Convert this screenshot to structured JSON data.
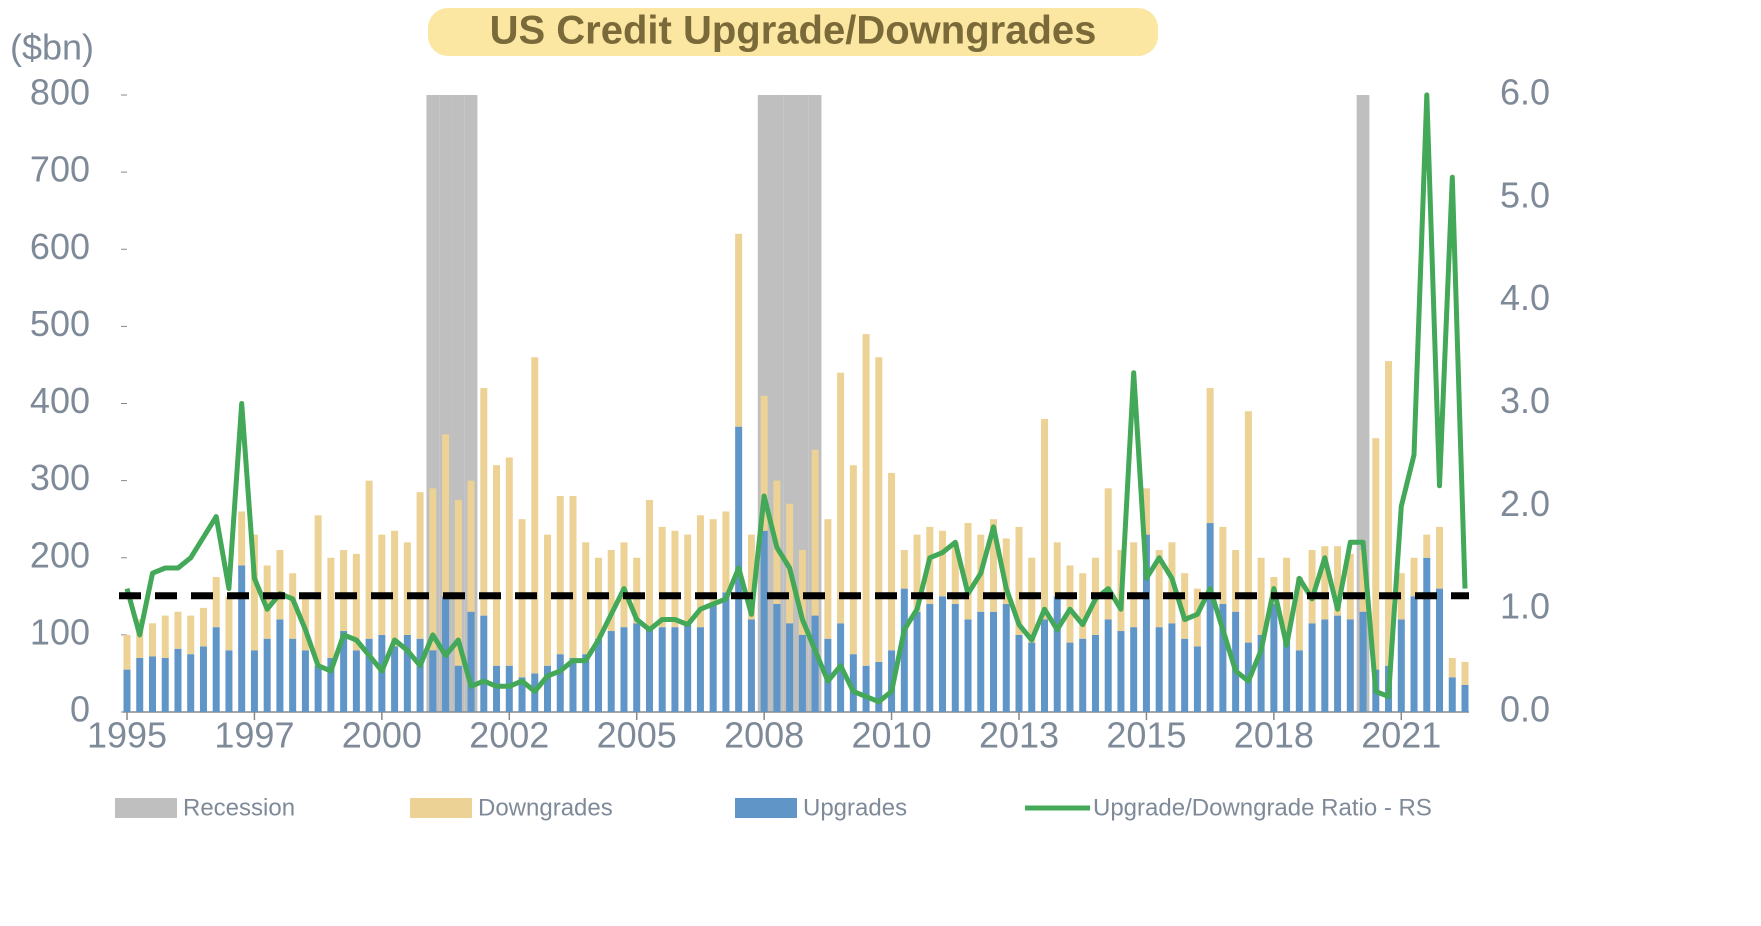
{
  "chart_data": {
    "type": "bar",
    "title": "US Credit Upgrade/Downgrades",
    "y_label": "($bn)",
    "categories": [
      "1995",
      null,
      null,
      null,
      null,
      null,
      null,
      null,
      null,
      null,
      "1997",
      null,
      null,
      null,
      null,
      null,
      null,
      null,
      null,
      null,
      "2000",
      null,
      null,
      null,
      null,
      null,
      null,
      null,
      null,
      null,
      "2002",
      null,
      null,
      null,
      null,
      null,
      null,
      null,
      null,
      null,
      "2005",
      null,
      null,
      null,
      null,
      null,
      null,
      null,
      null,
      null,
      "2008",
      null,
      null,
      null,
      null,
      null,
      null,
      null,
      null,
      null,
      "2010",
      null,
      null,
      null,
      null,
      null,
      null,
      null,
      null,
      null,
      "2013",
      null,
      null,
      null,
      null,
      null,
      null,
      null,
      null,
      null,
      "2015",
      null,
      null,
      null,
      null,
      null,
      null,
      null,
      null,
      null,
      "2018",
      null,
      null,
      null,
      null,
      null,
      null,
      null,
      null,
      null,
      "2021",
      null,
      null,
      null,
      null,
      null
    ],
    "stacked": true,
    "series": [
      {
        "name": "Upgrades",
        "color": "#5f95c7",
        "values": [
          55,
          70,
          72,
          70,
          82,
          75,
          85,
          110,
          80,
          190,
          80,
          95,
          120,
          95,
          80,
          60,
          70,
          105,
          80,
          95,
          100,
          85,
          100,
          95,
          80,
          150,
          60,
          130,
          125,
          60,
          60,
          45,
          50,
          60,
          75,
          70,
          75,
          95,
          105,
          110,
          115,
          110,
          110,
          110,
          115,
          110,
          140,
          155,
          370,
          120,
          235,
          140,
          115,
          100,
          125,
          95,
          115,
          75,
          60,
          65,
          80,
          160,
          130,
          140,
          150,
          140,
          120,
          130,
          130,
          140,
          100,
          90,
          120,
          150,
          90,
          95,
          100,
          120,
          105,
          110,
          230,
          110,
          115,
          95,
          85,
          245,
          140,
          130,
          90,
          100,
          140,
          100,
          80,
          115,
          120,
          125,
          120,
          130,
          55,
          60,
          120,
          150,
          200,
          160,
          45,
          35
        ]
      },
      {
        "name": "Downgrades",
        "color": "#ecd295",
        "values": [
          45,
          50,
          43,
          55,
          48,
          50,
          50,
          65,
          70,
          70,
          150,
          95,
          90,
          85,
          70,
          195,
          130,
          105,
          125,
          205,
          130,
          150,
          120,
          190,
          210,
          210,
          215,
          170,
          295,
          260,
          270,
          205,
          410,
          170,
          205,
          210,
          145,
          105,
          105,
          110,
          85,
          165,
          130,
          125,
          115,
          145,
          110,
          105,
          250,
          110,
          175,
          160,
          155,
          110,
          215,
          155,
          325,
          245,
          430,
          395,
          230,
          50,
          100,
          100,
          85,
          80,
          125,
          100,
          120,
          85,
          140,
          110,
          260,
          70,
          100,
          85,
          100,
          170,
          105,
          110,
          60,
          100,
          105,
          85,
          75,
          175,
          100,
          80,
          300,
          100,
          35,
          100,
          95,
          95,
          95,
          90,
          85,
          80,
          300,
          395,
          60,
          50,
          30,
          80,
          25,
          30
        ]
      },
      {
        "name": "Upgrade/Downgrade Ratio - RS",
        "type": "line",
        "axis": "y2",
        "color": "#43a857",
        "values": [
          1.2,
          0.75,
          1.35,
          1.4,
          1.4,
          1.5,
          1.7,
          1.9,
          1.2,
          3.0,
          1.3,
          1.0,
          1.15,
          1.1,
          0.8,
          0.45,
          0.4,
          0.75,
          0.7,
          0.55,
          0.4,
          0.7,
          0.6,
          0.45,
          0.75,
          0.55,
          0.7,
          0.25,
          0.3,
          0.25,
          0.25,
          0.3,
          0.2,
          0.35,
          0.4,
          0.5,
          0.5,
          0.7,
          0.95,
          1.2,
          0.9,
          0.8,
          0.9,
          0.9,
          0.85,
          1.0,
          1.05,
          1.1,
          1.4,
          0.95,
          2.1,
          1.6,
          1.4,
          0.9,
          0.6,
          0.3,
          0.45,
          0.2,
          0.15,
          0.1,
          0.2,
          0.8,
          1.0,
          1.5,
          1.55,
          1.65,
          1.15,
          1.35,
          1.8,
          1.2,
          0.85,
          0.7,
          1.0,
          0.8,
          1.0,
          0.85,
          1.1,
          1.2,
          1.0,
          3.3,
          1.3,
          1.5,
          1.3,
          0.9,
          0.95,
          1.2,
          0.8,
          0.4,
          0.3,
          0.6,
          1.2,
          0.65,
          1.3,
          1.1,
          1.5,
          1.0,
          1.65,
          1.65,
          0.2,
          0.15,
          2.0,
          2.5,
          6.0,
          2.2,
          5.2,
          1.2
        ]
      }
    ],
    "recession": {
      "name": "Recession",
      "color": "#bfbfbf",
      "values": [
        0,
        0,
        0,
        0,
        0,
        0,
        0,
        0,
        0,
        0,
        0,
        0,
        0,
        0,
        0,
        0,
        0,
        0,
        0,
        0,
        0,
        0,
        0,
        0,
        1,
        1,
        1,
        1,
        0,
        0,
        0,
        0,
        0,
        0,
        0,
        0,
        0,
        0,
        0,
        0,
        0,
        0,
        0,
        0,
        0,
        0,
        0,
        0,
        0,
        0,
        1,
        1,
        1,
        1,
        1,
        0,
        0,
        0,
        0,
        0,
        0,
        0,
        0,
        0,
        0,
        0,
        0,
        0,
        0,
        0,
        0,
        0,
        0,
        0,
        0,
        0,
        0,
        0,
        0,
        0,
        0,
        0,
        0,
        0,
        0,
        0,
        0,
        0,
        0,
        0,
        0,
        0,
        0,
        0,
        0,
        0,
        0,
        1,
        0,
        0,
        0,
        0,
        0,
        0,
        0,
        0
      ]
    },
    "threshold": 1.13,
    "ylim": [
      0,
      800
    ],
    "yticks": [
      0,
      100,
      200,
      300,
      400,
      500,
      600,
      700,
      800
    ],
    "y2lim": [
      0,
      6
    ],
    "y2ticks": [
      {
        "value": 0,
        "label": "0.0"
      },
      {
        "value": 1,
        "label": "1.0"
      },
      {
        "value": 2,
        "label": "2.0"
      },
      {
        "value": 3,
        "label": "3.0"
      },
      {
        "value": 4,
        "label": "4.0"
      },
      {
        "value": 5,
        "label": "5.0"
      },
      {
        "value": 6,
        "label": "6.0"
      }
    ]
  }
}
